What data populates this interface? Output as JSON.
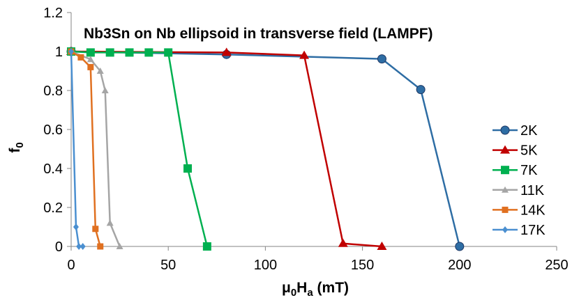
{
  "chart_data": {
    "type": "line",
    "title": "Nb3Sn on Nb ellipsoid in transverse field (LAMPF)",
    "xlabel": {
      "main": "μ",
      "sub1": "0",
      "mid": "H",
      "sub2": "a",
      "tail": " (mT)"
    },
    "ylabel": {
      "main": "f",
      "sub": "0"
    },
    "xlim": [
      0,
      250
    ],
    "ylim": [
      0,
      1.2
    ],
    "x_ticks": [
      0,
      50,
      100,
      150,
      200,
      250
    ],
    "y_ticks": [
      "0",
      "0.2",
      "0.4",
      "0.6",
      "0.8",
      "1",
      "1.2"
    ],
    "legend_position": "right",
    "series": [
      {
        "name": "2K",
        "color": "#2E6DA4",
        "marker": "circle",
        "x": [
          0,
          80,
          160,
          180,
          200
        ],
        "y": [
          1.0,
          0.985,
          0.962,
          0.805,
          0.0
        ]
      },
      {
        "name": "5K",
        "color": "#C00000",
        "marker": "triangle",
        "x": [
          0,
          80,
          120,
          140,
          160
        ],
        "y": [
          1.0,
          0.995,
          0.98,
          0.015,
          0.0
        ]
      },
      {
        "name": "7K",
        "color": "#00B050",
        "marker": "square",
        "x": [
          0,
          10,
          20,
          30,
          40,
          50,
          60,
          70
        ],
        "y": [
          1.0,
          0.995,
          0.995,
          0.995,
          0.995,
          0.995,
          0.4,
          0.0
        ]
      },
      {
        "name": "11K",
        "color": "#A5A5A5",
        "marker": "triangle-small",
        "x": [
          0,
          10,
          15,
          17.5,
          20,
          25
        ],
        "y": [
          1.0,
          0.96,
          0.9,
          0.8,
          0.12,
          0.0
        ]
      },
      {
        "name": "14K",
        "color": "#E07020",
        "marker": "square-small",
        "x": [
          0,
          5,
          10,
          12.5,
          15
        ],
        "y": [
          1.0,
          0.97,
          0.92,
          0.09,
          0.0
        ]
      },
      {
        "name": "17K",
        "color": "#4A8FD0",
        "marker": "diamond",
        "x": [
          0,
          2.5,
          4,
          6
        ],
        "y": [
          1.0,
          0.1,
          0.0,
          0.0
        ]
      }
    ]
  }
}
